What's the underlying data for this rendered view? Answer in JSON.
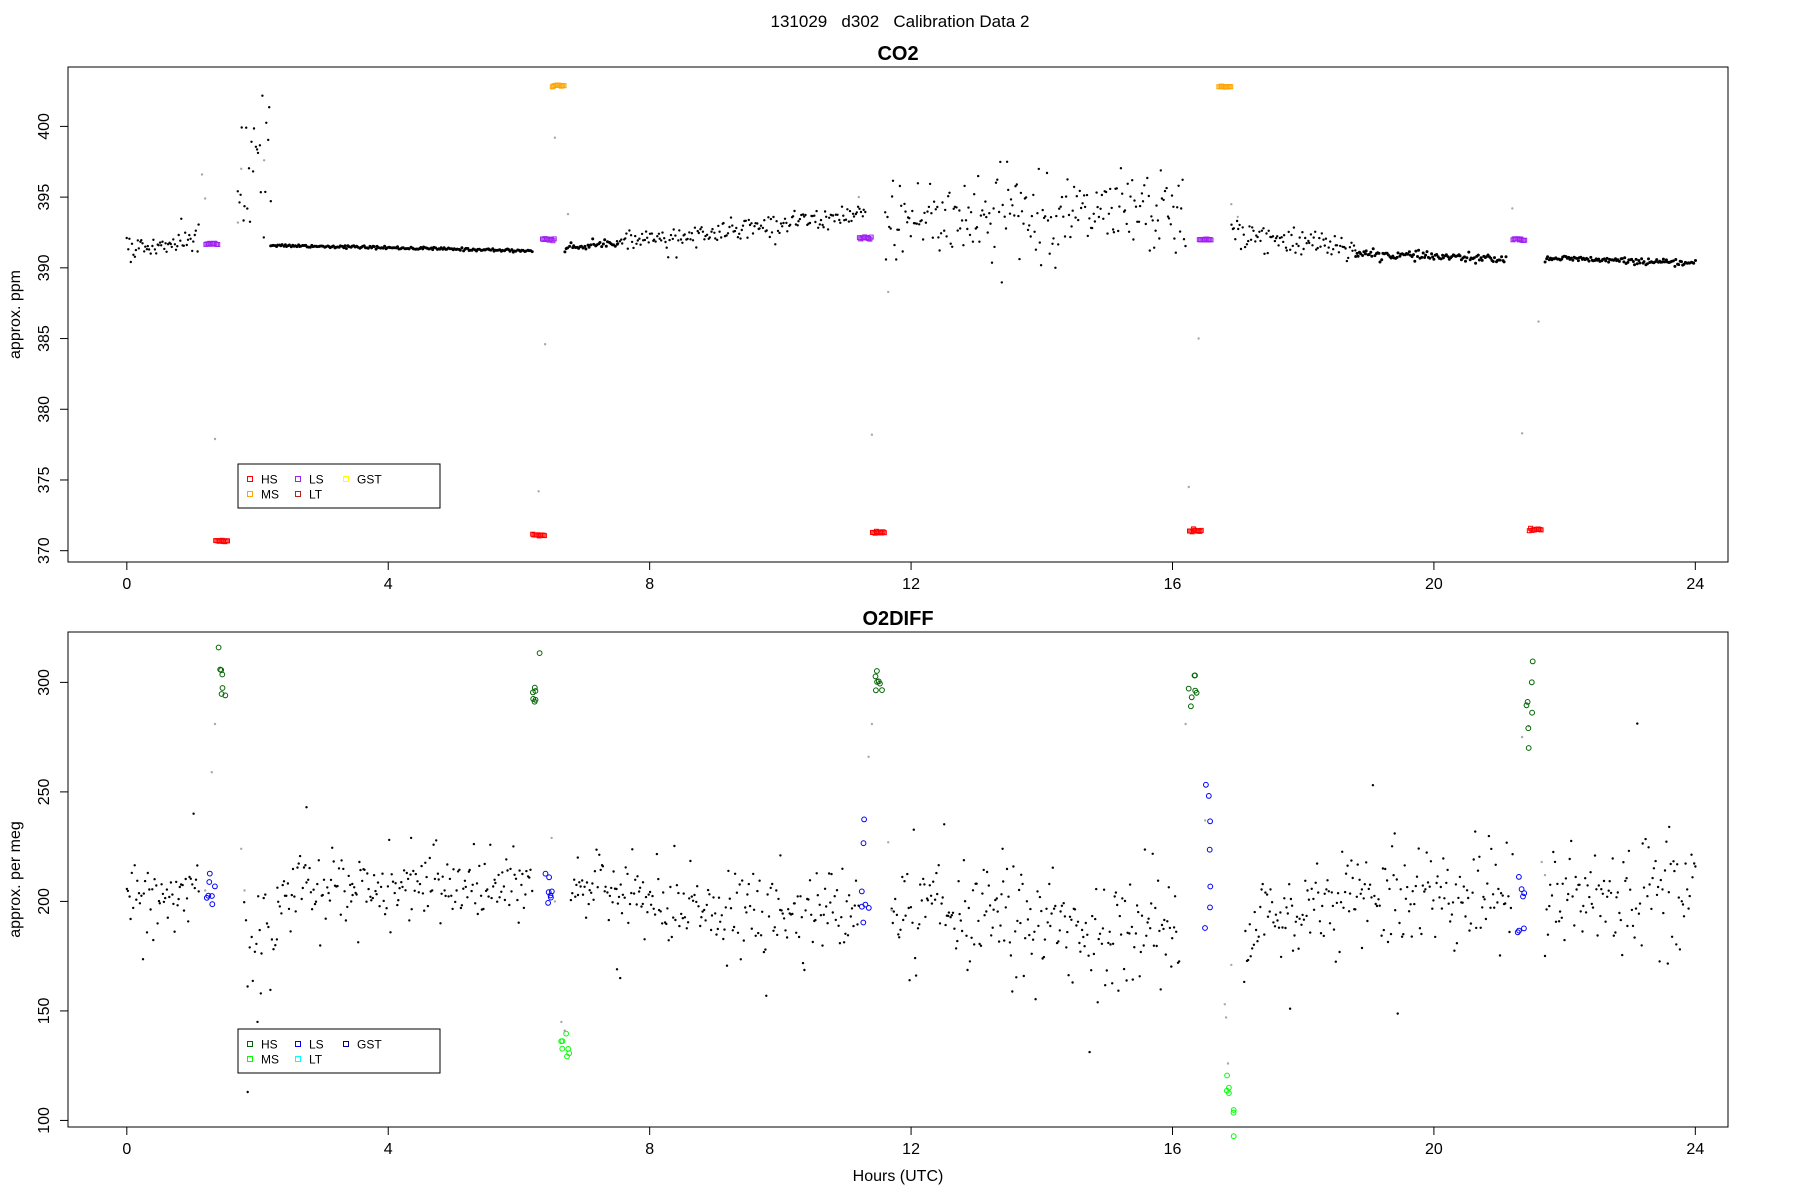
{
  "title": "131029   d302   Calibration Data 2",
  "chart_data": [
    {
      "type": "scatter",
      "title": "CO2",
      "xlabel": "",
      "ylabel": "approx. ppm",
      "xlim": [
        -0.9,
        24.5
      ],
      "ylim": [
        369.2,
        404.2
      ],
      "xticks": [
        0,
        4,
        8,
        12,
        16,
        20,
        24
      ],
      "yticks": [
        370,
        375,
        380,
        385,
        390,
        395,
        400
      ],
      "ytick_labels": [
        "370",
        "375",
        "380",
        "385",
        "390",
        "395",
        "400"
      ],
      "legend": {
        "placement": "bottom-left",
        "entries": [
          {
            "label": "HS",
            "color": "#ff0000"
          },
          {
            "label": "MS",
            "color": "#ffa500"
          },
          {
            "label": "LS",
            "color": "#a020f0"
          },
          {
            "label": "LT",
            "color": "#b22222"
          },
          {
            "label": "GST",
            "color": "#ffff00"
          }
        ]
      },
      "ambient": {
        "color": "#000000",
        "stable_segments": [
          {
            "x": [
              2.2,
              6.2
            ],
            "y": [
              391.6,
              391.2
            ],
            "n": 180,
            "noise": 0.05
          },
          {
            "x": [
              6.7,
              7.5
            ],
            "y": [
              391.4,
              391.8
            ],
            "n": 35,
            "noise": 0.15
          },
          {
            "x": [
              18.8,
              21.1
            ],
            "y": [
              391.0,
              390.6
            ],
            "n": 110,
            "noise": 0.15
          },
          {
            "x": [
              21.7,
              24.0
            ],
            "y": [
              390.7,
              390.3
            ],
            "n": 110,
            "noise": 0.1
          }
        ],
        "noisy_segments": [
          {
            "x": [
              0.0,
              1.1
            ],
            "y": [
              391.3,
              392.0
            ],
            "n": 55,
            "noise": 0.5
          },
          {
            "x": [
              1.7,
              2.2
            ],
            "y": [
              395.0,
              397.0
            ],
            "n": 25,
            "noise": 3.0
          },
          {
            "x": [
              7.5,
              11.3
            ],
            "y": [
              391.8,
              393.8
            ],
            "n": 180,
            "noise": 0.35
          },
          {
            "x": [
              11.6,
              16.2
            ],
            "y": [
              393.5,
              393.8
            ],
            "n": 220,
            "noise": 1.4
          },
          {
            "x": [
              16.9,
              18.8
            ],
            "y": [
              392.4,
              391.2
            ],
            "n": 90,
            "noise": 0.5
          }
        ]
      },
      "gray_points": [
        [
          1.15,
          396.6
        ],
        [
          1.2,
          394.9
        ],
        [
          1.35,
          377.9
        ],
        [
          1.7,
          393.2
        ],
        [
          1.75,
          397.0
        ],
        [
          2.1,
          397.6
        ],
        [
          6.3,
          374.2
        ],
        [
          6.4,
          384.6
        ],
        [
          6.55,
          399.2
        ],
        [
          6.75,
          393.8
        ],
        [
          11.2,
          395.0
        ],
        [
          11.4,
          378.2
        ],
        [
          11.65,
          388.3
        ],
        [
          16.25,
          374.5
        ],
        [
          16.4,
          385.0
        ],
        [
          16.9,
          394.5
        ],
        [
          17.0,
          393.6
        ],
        [
          21.2,
          394.2
        ],
        [
          21.35,
          378.3
        ],
        [
          21.6,
          386.2
        ]
      ],
      "cal_clusters": [
        {
          "label": "LS",
          "color": "#a020f0",
          "x": 1.3,
          "y": 391.7
        },
        {
          "label": "HS",
          "color": "#ff0000",
          "x": 1.45,
          "y": 370.7
        },
        {
          "label": "HS",
          "color": "#ff0000",
          "x": 6.3,
          "y": 371.1
        },
        {
          "label": "LS",
          "color": "#a020f0",
          "x": 6.45,
          "y": 392.0
        },
        {
          "label": "MS",
          "color": "#ffa500",
          "x": 6.6,
          "y": 402.9
        },
        {
          "label": "LS",
          "color": "#a020f0",
          "x": 11.3,
          "y": 392.1
        },
        {
          "label": "HS",
          "color": "#ff0000",
          "x": 11.5,
          "y": 371.3
        },
        {
          "label": "HS",
          "color": "#ff0000",
          "x": 16.35,
          "y": 371.4
        },
        {
          "label": "LS",
          "color": "#a020f0",
          "x": 16.5,
          "y": 392.0
        },
        {
          "label": "MS",
          "color": "#ffa500",
          "x": 16.8,
          "y": 402.8
        },
        {
          "label": "LS",
          "color": "#a020f0",
          "x": 21.3,
          "y": 392.0
        },
        {
          "label": "LT",
          "color": "#ff0000",
          "x": 21.55,
          "y": 371.5
        }
      ]
    },
    {
      "type": "scatter",
      "title": "O2DIFF",
      "xlabel": "Hours (UTC)",
      "ylabel": "approx. per meg",
      "xlim": [
        -0.9,
        24.5
      ],
      "ylim": [
        97,
        323
      ],
      "xticks": [
        0,
        4,
        8,
        12,
        16,
        20,
        24
      ],
      "yticks": [
        100,
        150,
        200,
        250,
        300
      ],
      "ytick_labels": [
        "100",
        "150",
        "200",
        "250",
        "300"
      ],
      "legend": {
        "placement": "bottom-left",
        "entries": [
          {
            "label": "HS",
            "color": "#006400"
          },
          {
            "label": "MS",
            "color": "#00ff00"
          },
          {
            "label": "LS",
            "color": "#0000ff"
          },
          {
            "label": "LT",
            "color": "#00ffff"
          },
          {
            "label": "GST",
            "color": "#00008b"
          }
        ]
      },
      "ambient": {
        "color": "#000000",
        "stable_segments": [],
        "noisy_segments": [
          {
            "x": [
              0.0,
              1.1
            ],
            "y": [
              203,
              206
            ],
            "n": 55,
            "noise": 6
          },
          {
            "x": [
              1.8,
              2.3
            ],
            "y": [
              180,
              188
            ],
            "n": 20,
            "noise": 12
          },
          {
            "x": [
              2.3,
              6.2
            ],
            "y": [
              206,
              207
            ],
            "n": 190,
            "noise": 7
          },
          {
            "x": [
              6.8,
              7.9
            ],
            "y": [
              208,
              205
            ],
            "n": 55,
            "noise": 6
          },
          {
            "x": [
              7.9,
              11.2
            ],
            "y": [
              195,
              196
            ],
            "n": 160,
            "noise": 9
          },
          {
            "x": [
              11.7,
              16.1
            ],
            "y": [
              195,
              183
            ],
            "n": 220,
            "noise": 13
          },
          {
            "x": [
              17.1,
              18.9
            ],
            "y": [
              192,
              203
            ],
            "n": 90,
            "noise": 11
          },
          {
            "x": [
              18.9,
              21.2
            ],
            "y": [
              204,
              203
            ],
            "n": 110,
            "noise": 12
          },
          {
            "x": [
              21.7,
              24.0
            ],
            "y": [
              200,
              208
            ],
            "n": 110,
            "noise": 12
          }
        ]
      },
      "extra_points": [
        [
          1.85,
          113
        ],
        [
          2.0,
          145
        ],
        [
          2.05,
          158
        ],
        [
          2.75,
          243
        ],
        [
          3.45,
          208
        ],
        [
          4.35,
          229
        ],
        [
          6.9,
          220
        ],
        [
          7.5,
          169
        ],
        [
          7.55,
          165
        ],
        [
          17.8,
          151
        ],
        [
          10.0,
          221
        ],
        [
          13.4,
          224
        ],
        [
          19.4,
          231
        ],
        [
          23.6,
          234
        ]
      ],
      "gray_points": [
        [
          1.2,
          205
        ],
        [
          1.3,
          259
        ],
        [
          1.35,
          281
        ],
        [
          1.75,
          224
        ],
        [
          1.8,
          205
        ],
        [
          6.5,
          229
        ],
        [
          6.65,
          145
        ],
        [
          6.7,
          141
        ],
        [
          6.55,
          200
        ],
        [
          11.35,
          266
        ],
        [
          11.4,
          281
        ],
        [
          11.65,
          227
        ],
        [
          11.7,
          196
        ],
        [
          16.2,
          281
        ],
        [
          16.5,
          237
        ],
        [
          16.8,
          153
        ],
        [
          16.82,
          147
        ],
        [
          16.85,
          126
        ],
        [
          16.9,
          171
        ],
        [
          21.35,
          275
        ],
        [
          21.45,
          280
        ],
        [
          21.65,
          218
        ],
        [
          21.7,
          212
        ]
      ],
      "cal_clusters": [
        {
          "label": "LS",
          "color": "#0000ff",
          "x": 1.28,
          "y": 205,
          "spread": 6
        },
        {
          "label": "HS",
          "color": "#006400",
          "x": 1.45,
          "y": 305,
          "spread": 8
        },
        {
          "label": "HS",
          "color": "#006400",
          "x": 6.25,
          "y": 297,
          "spread": 6
        },
        {
          "label": "LS",
          "color": "#0000ff",
          "x": 6.45,
          "y": 205,
          "spread": 6
        },
        {
          "label": "MS",
          "color": "#00ff00",
          "x": 6.7,
          "y": 134,
          "spread": 3
        },
        {
          "label": "LS",
          "color": "#0000ff",
          "x": 11.3,
          "y": 204,
          "spread": 18
        },
        {
          "label": "HS",
          "color": "#006400",
          "x": 11.5,
          "y": 300,
          "spread": 5
        },
        {
          "label": "HS",
          "color": "#006400",
          "x": 16.3,
          "y": 297,
          "spread": 4
        },
        {
          "label": "GST",
          "color": "#0000ff",
          "x": 16.55,
          "y": 228,
          "spread": 20
        },
        {
          "label": "MS",
          "color": "#00ff00",
          "x": 16.9,
          "y": 110,
          "spread": 7
        },
        {
          "label": "HS",
          "color": "#006400",
          "x": 21.45,
          "y": 289,
          "spread": 10
        },
        {
          "label": "LS",
          "color": "#0000ff",
          "x": 21.35,
          "y": 201,
          "spread": 12
        }
      ]
    }
  ]
}
